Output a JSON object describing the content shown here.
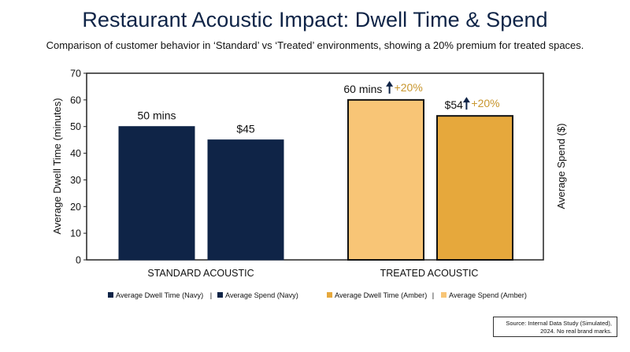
{
  "title": "Restaurant Acoustic Impact: Dwell Time & Spend",
  "subtitle": "Comparison of customer behavior in ‘Standard’ vs ‘Treated’ environments, showing a 20% premium for treated spaces.",
  "source": {
    "line1": "Source: Internal Data Study (Simulated),",
    "line2": "2024. No real brand marks."
  },
  "colors": {
    "navy": "#0f2447",
    "amber_dwell": "#f8c576",
    "amber_spend": "#e6a83c",
    "premium_text": "#c8962e"
  },
  "chart_data": {
    "type": "bar",
    "title": "Restaurant Acoustic Impact: Dwell Time & Spend",
    "categories": [
      "STANDARD ACOUSTIC",
      "TREATED ACOUSTIC"
    ],
    "ylabel": "Average Dwell Time (minutes)",
    "y2label": "Average Spend ($)",
    "ylim": [
      0,
      70
    ],
    "yticks": [
      0,
      10,
      20,
      30,
      40,
      50,
      60,
      70
    ],
    "grid": false,
    "legend_position": "bottom",
    "series": [
      {
        "name": "Average Dwell Time",
        "values": [
          50,
          60
        ],
        "labels": [
          "50 mins",
          "60 mins"
        ],
        "premium": [
          "",
          "+20%"
        ]
      },
      {
        "name": "Average Spend",
        "values": [
          45,
          54
        ],
        "labels": [
          "$45",
          "$54"
        ],
        "premium": [
          "",
          "+20%"
        ]
      }
    ],
    "legend": [
      "Average Dwell Time (Navy)",
      "Average Spend (Navy)",
      "Average Dwell Time (Amber)",
      "Average Spend (Amber)"
    ],
    "legend_separator": "|"
  }
}
